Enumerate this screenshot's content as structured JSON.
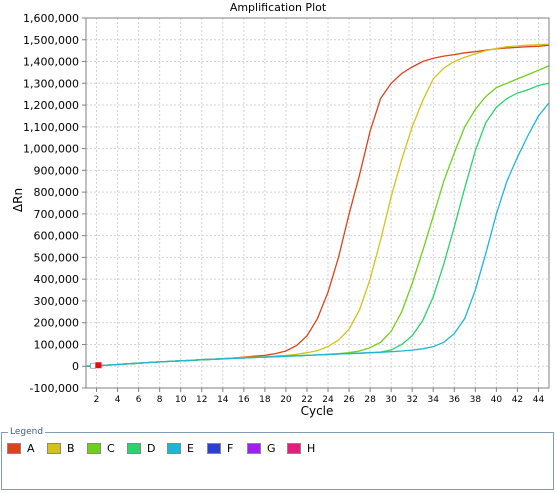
{
  "chart_data": {
    "type": "line",
    "title": "Amplification Plot",
    "xlabel": "Cycle",
    "ylabel": "ΔRn",
    "xlim": [
      1,
      45
    ],
    "ylim": [
      -100000,
      1600000
    ],
    "xticks": [
      2,
      4,
      6,
      8,
      10,
      12,
      14,
      16,
      18,
      20,
      22,
      24,
      26,
      28,
      30,
      32,
      34,
      36,
      38,
      40,
      42,
      44
    ],
    "xtick_labels": [
      "2",
      "4",
      "6",
      "8",
      "10",
      "12",
      "14",
      "16",
      "18",
      "20",
      "22",
      "24",
      "26",
      "28",
      "30",
      "32",
      "34",
      "36",
      "38",
      "40",
      "42",
      "44"
    ],
    "yticks": [
      -100000,
      0,
      100000,
      200000,
      300000,
      400000,
      500000,
      600000,
      700000,
      800000,
      900000,
      1000000,
      1100000,
      1200000,
      1300000,
      1400000,
      1500000,
      1600000
    ],
    "ytick_labels": [
      "-100,000",
      "0",
      "100,000",
      "200,000",
      "300,000",
      "400,000",
      "500,000",
      "600,000",
      "700,000",
      "800,000",
      "900,000",
      "1,000,000",
      "1,100,000",
      "1,200,000",
      "1,300,000",
      "1,400,000",
      "1,500,000",
      "1,600,000"
    ],
    "grid": true,
    "x": [
      1,
      2,
      3,
      4,
      5,
      6,
      7,
      8,
      9,
      10,
      11,
      12,
      13,
      14,
      15,
      16,
      17,
      18,
      19,
      20,
      21,
      22,
      23,
      24,
      25,
      26,
      27,
      28,
      29,
      30,
      31,
      32,
      33,
      34,
      35,
      36,
      37,
      38,
      39,
      40,
      41,
      42,
      43,
      44,
      45
    ],
    "series": [
      {
        "color": "#d9441c",
        "values": [
          0,
          2000,
          5000,
          8000,
          11000,
          14000,
          17000,
          20000,
          22000,
          25000,
          27000,
          30000,
          32000,
          35000,
          38000,
          42000,
          46000,
          50000,
          58000,
          70000,
          95000,
          140000,
          220000,
          340000,
          500000,
          700000,
          880000,
          1080000,
          1230000,
          1300000,
          1345000,
          1375000,
          1400000,
          1415000,
          1425000,
          1432000,
          1440000,
          1445000,
          1452000,
          1458000,
          1462000,
          1465000,
          1468000,
          1470000,
          1475000
        ]
      },
      {
        "color": "#d4c21a",
        "values": [
          0,
          2000,
          5000,
          8000,
          11000,
          14000,
          17000,
          20000,
          22000,
          25000,
          27000,
          30000,
          32000,
          35000,
          38000,
          40000,
          42000,
          44000,
          47000,
          50000,
          55000,
          62000,
          72000,
          90000,
          120000,
          170000,
          260000,
          400000,
          580000,
          780000,
          950000,
          1100000,
          1220000,
          1320000,
          1370000,
          1400000,
          1420000,
          1435000,
          1450000,
          1460000,
          1468000,
          1472000,
          1475000,
          1478000,
          1480000
        ]
      },
      {
        "color": "#6fcf1f",
        "values": [
          0,
          2000,
          5000,
          8000,
          11000,
          14000,
          17000,
          20000,
          22000,
          25000,
          27000,
          30000,
          32000,
          34000,
          36000,
          38000,
          40000,
          42000,
          44000,
          46000,
          48000,
          50000,
          52000,
          55000,
          58000,
          62000,
          70000,
          85000,
          110000,
          160000,
          250000,
          380000,
          530000,
          690000,
          850000,
          980000,
          1100000,
          1180000,
          1240000,
          1280000,
          1300000,
          1320000,
          1340000,
          1360000,
          1380000
        ]
      },
      {
        "color": "#2ad36b",
        "values": [
          0,
          2000,
          5000,
          8000,
          11000,
          14000,
          17000,
          20000,
          22000,
          25000,
          27000,
          30000,
          32000,
          34000,
          36000,
          38000,
          40000,
          42000,
          44000,
          46000,
          48000,
          50000,
          52000,
          54000,
          56000,
          58000,
          60000,
          62000,
          65000,
          75000,
          100000,
          140000,
          210000,
          320000,
          470000,
          640000,
          820000,
          990000,
          1120000,
          1190000,
          1230000,
          1255000,
          1270000,
          1290000,
          1300000
        ]
      },
      {
        "color": "#1fb5d9",
        "values": [
          0,
          2000,
          5000,
          8000,
          11000,
          14000,
          17000,
          20000,
          22000,
          25000,
          27000,
          30000,
          32000,
          34000,
          36000,
          38000,
          40000,
          42000,
          44000,
          46000,
          48000,
          50000,
          52000,
          54000,
          56000,
          58000,
          60000,
          62000,
          64000,
          67000,
          70000,
          74000,
          80000,
          90000,
          110000,
          150000,
          220000,
          350000,
          520000,
          700000,
          850000,
          960000,
          1060000,
          1150000,
          1210000
        ]
      }
    ],
    "sample_marker": {
      "x": 2,
      "y": 0,
      "color": "#e01010"
    }
  },
  "legend": {
    "title": "Legend",
    "items": [
      {
        "label": "A",
        "color": "#d9441c"
      },
      {
        "label": "B",
        "color": "#d4c21a"
      },
      {
        "label": "C",
        "color": "#6fcf1f"
      },
      {
        "label": "D",
        "color": "#2ad36b"
      },
      {
        "label": "E",
        "color": "#1fb5d9"
      },
      {
        "label": "F",
        "color": "#2a3fd4"
      },
      {
        "label": "G",
        "color": "#a020f0"
      },
      {
        "label": "H",
        "color": "#e0207a"
      }
    ]
  }
}
